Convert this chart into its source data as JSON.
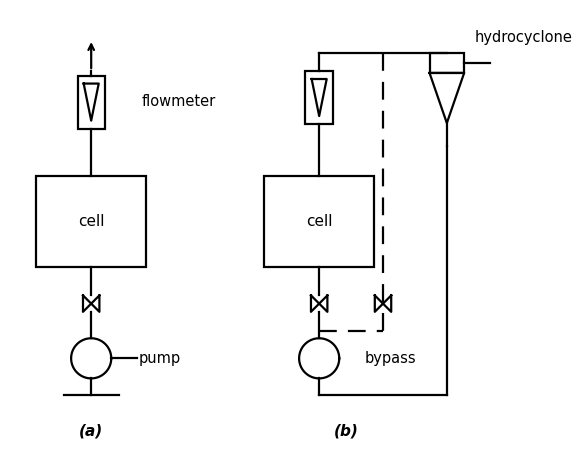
{
  "fig_width": 5.79,
  "fig_height": 4.75,
  "background_color": "#ffffff",
  "line_color": "#000000",
  "label_a": "(a)",
  "label_b": "(b)",
  "label_flowmeter": "flowmeter",
  "label_pump": "pump",
  "label_cell_a": "cell",
  "label_cell_b": "cell",
  "label_bypass": "bypass",
  "label_hydrocyclone": "hydrocyclone",
  "linewidth": 1.6
}
